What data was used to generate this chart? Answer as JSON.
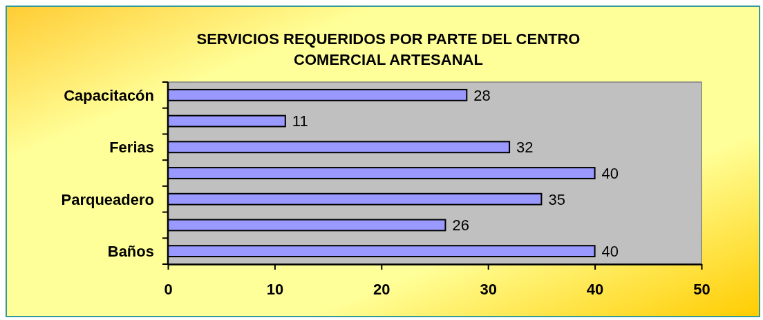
{
  "chart_data": {
    "type": "bar",
    "orientation": "horizontal",
    "title": "SERVICIOS REQUERIDOS POR PARTE DEL CENTRO COMERCIAL ARTESANAL",
    "categories": [
      "Capacitacón",
      null,
      "Ferias",
      null,
      "Parqueadero",
      null,
      "Baños"
    ],
    "values": [
      28,
      11,
      32,
      40,
      35,
      26,
      40
    ],
    "color": "#9999ff",
    "xlim": [
      0,
      50
    ],
    "xticks": [
      0,
      10,
      20,
      30,
      40,
      50
    ],
    "grid": false,
    "data_labels": true
  }
}
